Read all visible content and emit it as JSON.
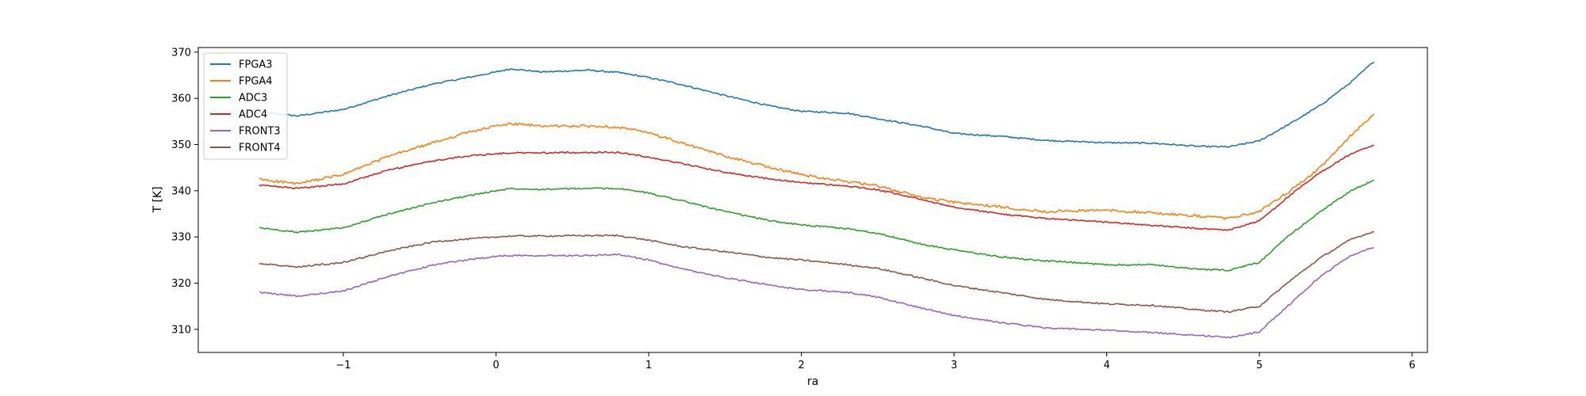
{
  "chart_data": {
    "type": "line",
    "title": "",
    "xlabel": "ra",
    "ylabel": "T [K]",
    "xlim": [
      -1.95,
      6.1
    ],
    "ylim": [
      305,
      371
    ],
    "xticks": [
      -1,
      0,
      1,
      2,
      3,
      4,
      5,
      6
    ],
    "yticks": [
      310,
      320,
      330,
      340,
      350,
      360,
      370
    ],
    "grid": false,
    "legend_position": "top-left",
    "series": [
      {
        "name": "FPGA3",
        "color": "#1f77b4",
        "x": [
          -1.55,
          -1.3,
          -1.0,
          -0.7,
          -0.4,
          -0.2,
          0.0,
          0.1,
          0.3,
          0.6,
          0.8,
          1.0,
          1.2,
          1.5,
          1.8,
          2.0,
          2.3,
          2.5,
          2.8,
          3.0,
          3.3,
          3.6,
          4.0,
          4.3,
          4.6,
          4.8,
          5.0,
          5.2,
          5.4,
          5.6,
          5.75
        ],
        "y": [
          357,
          356.2,
          357.6,
          360.6,
          363.2,
          364.4,
          365.7,
          366.4,
          365.7,
          366.1,
          365.6,
          364.5,
          363.1,
          360.6,
          358.3,
          357.2,
          356.8,
          355.6,
          353.9,
          352.4,
          351.8,
          350.9,
          350.4,
          350.3,
          349.6,
          349.5,
          350.8,
          354.5,
          358.5,
          363.5,
          368
        ]
      },
      {
        "name": "FPGA4",
        "color": "#ff7f0e",
        "x": [
          -1.55,
          -1.3,
          -1.0,
          -0.7,
          -0.4,
          -0.2,
          0.0,
          0.1,
          0.3,
          0.6,
          0.8,
          1.0,
          1.2,
          1.5,
          1.8,
          2.0,
          2.3,
          2.5,
          2.8,
          3.0,
          3.3,
          3.6,
          4.0,
          4.3,
          4.6,
          4.8,
          5.0,
          5.2,
          5.4,
          5.6,
          5.75
        ],
        "y": [
          342.5,
          341.5,
          343.5,
          347.5,
          350.5,
          352.5,
          354,
          354.5,
          354,
          354,
          353.8,
          352.5,
          350.5,
          347.5,
          345,
          343.5,
          342,
          341,
          338.5,
          337.5,
          336.5,
          335.5,
          335.8,
          335.2,
          334.5,
          334,
          335.5,
          340,
          345,
          352,
          356.5
        ]
      },
      {
        "name": "ADC3",
        "color": "#2ca02c",
        "x": [
          -1.55,
          -1.3,
          -1.0,
          -0.7,
          -0.4,
          -0.2,
          0.0,
          0.1,
          0.3,
          0.6,
          0.8,
          1.0,
          1.2,
          1.5,
          1.8,
          2.0,
          2.3,
          2.5,
          2.8,
          3.0,
          3.3,
          3.6,
          4.0,
          4.3,
          4.6,
          4.8,
          5.0,
          5.2,
          5.4,
          5.6,
          5.75
        ],
        "y": [
          332,
          331,
          332,
          335,
          337.5,
          338.8,
          340,
          340.5,
          340.3,
          340.5,
          340.5,
          339.5,
          338,
          335.5,
          333.5,
          332.6,
          331.8,
          330.8,
          328.3,
          327.2,
          325.7,
          324.8,
          324,
          324,
          323,
          322.8,
          324.5,
          330.5,
          335.5,
          340,
          342.3
        ]
      },
      {
        "name": "ADC4",
        "color": "#d62728",
        "x": [
          -1.55,
          -1.3,
          -1.0,
          -0.7,
          -0.4,
          -0.2,
          0.0,
          0.1,
          0.3,
          0.6,
          0.8,
          1.0,
          1.2,
          1.5,
          1.8,
          2.0,
          2.3,
          2.5,
          2.8,
          3.0,
          3.3,
          3.6,
          4.0,
          4.3,
          4.6,
          4.8,
          5.0,
          5.2,
          5.4,
          5.6,
          5.75
        ],
        "y": [
          341.2,
          340.5,
          341.5,
          344.5,
          346.5,
          347.5,
          348,
          348.2,
          348.2,
          348.3,
          348.3,
          347.3,
          346,
          344,
          342.5,
          341.8,
          341,
          340.2,
          338,
          336.5,
          335,
          334,
          333.2,
          332.5,
          331.8,
          331.5,
          333.5,
          339,
          344,
          348,
          349.8
        ]
      },
      {
        "name": "FRONT3",
        "color": "#9467bd",
        "x": [
          -1.55,
          -1.3,
          -1.0,
          -0.7,
          -0.4,
          -0.2,
          0.0,
          0.1,
          0.3,
          0.6,
          0.8,
          1.0,
          1.2,
          1.5,
          1.8,
          2.0,
          2.3,
          2.5,
          2.8,
          3.0,
          3.3,
          3.6,
          4.0,
          4.3,
          4.6,
          4.8,
          5.0,
          5.2,
          5.4,
          5.6,
          5.75
        ],
        "y": [
          318,
          317.2,
          318.3,
          321.5,
          324,
          325,
          325.8,
          326,
          326,
          326,
          326.2,
          325,
          323.2,
          321.2,
          319.5,
          318.6,
          318,
          317,
          314.5,
          313,
          311.5,
          310.3,
          309.8,
          309.3,
          308.7,
          308.2,
          309.5,
          315.5,
          321.5,
          326,
          327.8
        ]
      },
      {
        "name": "FRONT4",
        "color": "#8c564b",
        "x": [
          -1.55,
          -1.3,
          -1.0,
          -0.7,
          -0.4,
          -0.2,
          0.0,
          0.1,
          0.3,
          0.6,
          0.8,
          1.0,
          1.2,
          1.5,
          1.8,
          2.0,
          2.3,
          2.5,
          2.8,
          3.0,
          3.3,
          3.6,
          4.0,
          4.3,
          4.6,
          4.8,
          5.0,
          5.2,
          5.4,
          5.6,
          5.75
        ],
        "y": [
          324.2,
          323.5,
          324.5,
          327,
          329,
          329.5,
          330,
          330.2,
          330.2,
          330.3,
          330.3,
          329.3,
          328,
          326.8,
          325.5,
          325,
          324,
          323.2,
          321,
          319.5,
          318,
          316.5,
          315.5,
          315.2,
          314.2,
          313.8,
          315,
          320.5,
          325.5,
          329.5,
          331.2
        ]
      }
    ]
  }
}
